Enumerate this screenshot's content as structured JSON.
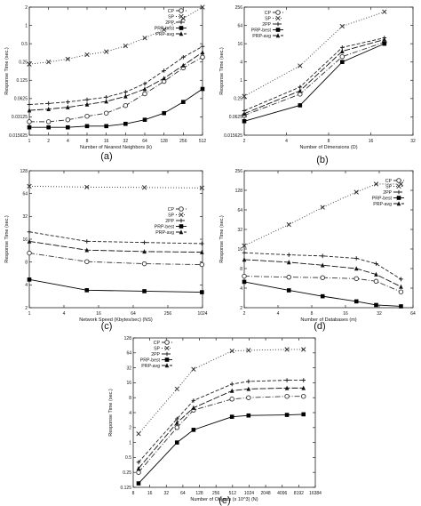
{
  "chart_data": [
    {
      "type": "line",
      "caption": "(a)",
      "xscale": "log2",
      "yscale": "log2",
      "xlabel": "Number of Nearest Neighbors (k)",
      "ylabel": "Response Time (sec.)",
      "xlim": [
        1,
        512
      ],
      "ylim": [
        0.015625,
        2
      ],
      "xticks": [
        1,
        2,
        4,
        8,
        16,
        32,
        64,
        128,
        256,
        512
      ],
      "xticklabels": [
        "1",
        "2",
        "4",
        "8",
        "16",
        "32",
        "64",
        "128",
        "256",
        "512"
      ],
      "yticks": [
        0.015625,
        0.03125,
        0.0625,
        0.125,
        0.25,
        0.5,
        1,
        2
      ],
      "yticklabels": [
        "0.015625",
        "0.03125",
        "0.0625",
        "0.125",
        "0.25",
        "0.5",
        "1",
        "2"
      ],
      "legend_position": "top-right",
      "series": [
        {
          "name": "CP",
          "x": [
            1,
            2,
            4,
            8,
            16,
            32,
            64,
            128,
            256,
            512
          ],
          "y": [
            0.026,
            0.026,
            0.028,
            0.032,
            0.036,
            0.048,
            0.075,
            0.12,
            0.2,
            0.3
          ]
        },
        {
          "name": "SP",
          "x": [
            1,
            2,
            4,
            8,
            16,
            32,
            64,
            128,
            256,
            512
          ],
          "y": [
            0.23,
            0.25,
            0.28,
            0.33,
            0.37,
            0.46,
            0.62,
            0.85,
            1.3,
            2.0
          ]
        },
        {
          "name": "2PP",
          "x": [
            1,
            2,
            4,
            8,
            16,
            32,
            64,
            128,
            256,
            512
          ],
          "y": [
            0.05,
            0.052,
            0.055,
            0.06,
            0.066,
            0.08,
            0.11,
            0.18,
            0.3,
            0.45
          ]
        },
        {
          "name": "PRP-best",
          "x": [
            1,
            2,
            4,
            8,
            16,
            32,
            64,
            128,
            256,
            512
          ],
          "y": [
            0.021,
            0.021,
            0.021,
            0.022,
            0.022,
            0.024,
            0.028,
            0.036,
            0.055,
            0.09
          ]
        },
        {
          "name": "PRP-avg",
          "x": [
            1,
            2,
            4,
            8,
            16,
            32,
            64,
            128,
            256,
            512
          ],
          "y": [
            0.04,
            0.042,
            0.045,
            0.05,
            0.056,
            0.068,
            0.09,
            0.135,
            0.22,
            0.36
          ]
        }
      ]
    },
    {
      "type": "line",
      "caption": "(b)",
      "xscale": "log2",
      "yscale": "log2",
      "xlabel": "Number of Dimensions (D)",
      "ylabel": "Response Time (sec.)",
      "xlim": [
        2,
        32
      ],
      "ylim": [
        0.015625,
        256
      ],
      "xticks": [
        2,
        4,
        8,
        16,
        32
      ],
      "xticklabels": [
        "2",
        "4",
        "8",
        "16",
        "32"
      ],
      "yticks": [
        0.015625,
        0.0625,
        0.25,
        1,
        4,
        16,
        64,
        256
      ],
      "yticklabels": [
        "0.015625",
        "0.0625",
        "0.25",
        "1",
        "4",
        "16",
        "64",
        "256"
      ],
      "legend_position": "top-left",
      "series": [
        {
          "name": "CP",
          "x": [
            2,
            5,
            10,
            20
          ],
          "y": [
            0.07,
            0.35,
            6,
            18
          ]
        },
        {
          "name": "SP",
          "x": [
            2,
            5,
            10,
            20
          ],
          "y": [
            0.3,
            3,
            60,
            180
          ]
        },
        {
          "name": "2PP",
          "x": [
            2,
            5,
            10,
            20
          ],
          "y": [
            0.1,
            0.6,
            12,
            25
          ]
        },
        {
          "name": "PRP-best",
          "x": [
            2,
            5,
            10,
            20
          ],
          "y": [
            0.045,
            0.15,
            4,
            16
          ]
        },
        {
          "name": "PRP-avg",
          "x": [
            2,
            5,
            10,
            20
          ],
          "y": [
            0.08,
            0.45,
            9,
            22
          ]
        }
      ]
    },
    {
      "type": "line",
      "caption": "(c)",
      "xscale": "log2",
      "yscale": "log2",
      "xlabel": "Network Speed (Kbytes/sec) (NS)",
      "ylabel": "Response Time (sec.)",
      "xlim": [
        1,
        1024
      ],
      "ylim": [
        2,
        128
      ],
      "xticks": [
        1,
        4,
        16,
        64,
        256,
        1024
      ],
      "xticklabels": [
        "1",
        "4",
        "16",
        "64",
        "256",
        "1024"
      ],
      "yticks": [
        2,
        4,
        8,
        16,
        32,
        64,
        128
      ],
      "yticklabels": [
        "2",
        "4",
        "8",
        "16",
        "32",
        "64",
        "128"
      ],
      "legend_position": "middle-right",
      "series": [
        {
          "name": "CP",
          "x": [
            1,
            10,
            100,
            1000
          ],
          "y": [
            10.5,
            8.1,
            7.6,
            7.4
          ]
        },
        {
          "name": "SP",
          "x": [
            1,
            10,
            100,
            1000
          ],
          "y": [
            80,
            78,
            77,
            76
          ]
        },
        {
          "name": "2PP",
          "x": [
            1,
            10,
            100,
            1000
          ],
          "y": [
            20,
            15,
            14.5,
            14
          ]
        },
        {
          "name": "PRP-best",
          "x": [
            1,
            10,
            100,
            1000
          ],
          "y": [
            4.7,
            3.4,
            3.3,
            3.2
          ]
        },
        {
          "name": "PRP-avg",
          "x": [
            1,
            10,
            100,
            1000
          ],
          "y": [
            15,
            11.5,
            11,
            10.8
          ]
        }
      ]
    },
    {
      "type": "line",
      "caption": "(d)",
      "xscale": "log2",
      "yscale": "log2",
      "xlabel": "Number of Databases (m)",
      "ylabel": "Response Time (sec.)",
      "xlim": [
        2,
        64
      ],
      "ylim": [
        2,
        256
      ],
      "xticks": [
        2,
        4,
        8,
        16,
        32,
        64
      ],
      "xticklabels": [
        "2",
        "4",
        "8",
        "16",
        "32",
        "64"
      ],
      "yticks": [
        2,
        4,
        8,
        16,
        32,
        64,
        128,
        256
      ],
      "yticklabels": [
        "2",
        "4",
        "8",
        "16",
        "32",
        "64",
        "128",
        "256"
      ],
      "legend_position": "top-right",
      "series": [
        {
          "name": "CP",
          "x": [
            2,
            5,
            10,
            20,
            30,
            50
          ],
          "y": [
            6.1,
            5.9,
            5.8,
            5.6,
            5.1,
            3.5
          ]
        },
        {
          "name": "SP",
          "x": [
            2,
            5,
            10,
            20,
            30,
            50
          ],
          "y": [
            18,
            38,
            70,
            120,
            160,
            160
          ]
        },
        {
          "name": "2PP",
          "x": [
            2,
            5,
            10,
            20,
            30,
            50
          ],
          "y": [
            14,
            13,
            12.5,
            11.5,
            9.5,
            5.5
          ]
        },
        {
          "name": "PRP-best",
          "x": [
            2,
            5,
            10,
            20,
            30,
            50
          ],
          "y": [
            5,
            3.7,
            3,
            2.5,
            2.2,
            2.1
          ]
        },
        {
          "name": "PRP-avg",
          "x": [
            2,
            5,
            10,
            20,
            30,
            50
          ],
          "y": [
            11,
            10,
            9,
            8,
            6.5,
            4.2
          ]
        }
      ]
    },
    {
      "type": "line",
      "caption": "(e)",
      "xscale": "log2",
      "yscale": "log2",
      "xlabel": "Number of Objects (x 10^3) (N)",
      "ylabel": "Response Time (sec.)",
      "xlim": [
        8,
        16384
      ],
      "ylim": [
        0.125,
        128
      ],
      "xticks": [
        8,
        16,
        32,
        64,
        128,
        256,
        512,
        1024,
        2048,
        4096,
        8192,
        16384
      ],
      "xticklabels": [
        "8",
        "16",
        "32",
        "64",
        "128",
        "256",
        "512",
        "1024",
        "2048",
        "4096",
        "8192",
        "16384"
      ],
      "yticks": [
        0.125,
        0.25,
        0.5,
        1,
        2,
        4,
        8,
        16,
        32,
        64,
        128
      ],
      "yticklabels": [
        "0.125",
        "0.25",
        "0.5",
        "1",
        "2",
        "4",
        "8",
        "16",
        "32",
        "64",
        "128"
      ],
      "legend_position": "top-left",
      "series": [
        {
          "name": "CP",
          "x": [
            10,
            50,
            100,
            500,
            1000,
            5000,
            10000
          ],
          "y": [
            0.25,
            2,
            4.5,
            7.5,
            8,
            8.5,
            8.5
          ]
        },
        {
          "name": "SP",
          "x": [
            10,
            50,
            100,
            500,
            1000,
            5000,
            10000
          ],
          "y": [
            1.5,
            12,
            30,
            70,
            72,
            75,
            75
          ]
        },
        {
          "name": "2PP",
          "x": [
            10,
            50,
            100,
            500,
            1000,
            5000,
            10000
          ],
          "y": [
            0.4,
            3,
            7,
            15,
            17,
            18,
            18
          ]
        },
        {
          "name": "PRP-best",
          "x": [
            10,
            50,
            100,
            500,
            1000,
            5000,
            10000
          ],
          "y": [
            0.15,
            1,
            1.8,
            3.3,
            3.5,
            3.6,
            3.7
          ]
        },
        {
          "name": "PRP-avg",
          "x": [
            10,
            50,
            100,
            500,
            1000,
            5000,
            10000
          ],
          "y": [
            0.3,
            2.5,
            5,
            11,
            12,
            12.5,
            12.5
          ]
        }
      ]
    }
  ],
  "series_style": {
    "CP": {
      "stroke": "#333333",
      "dash": "6 2 1 2",
      "marker": "circle"
    },
    "SP": {
      "stroke": "#333333",
      "dash": "1 2",
      "marker": "cross"
    },
    "2PP": {
      "stroke": "#222222",
      "dash": "4 2",
      "marker": "plus"
    },
    "PRP-best": {
      "stroke": "#000000",
      "dash": "",
      "marker": "square"
    },
    "PRP-avg": {
      "stroke": "#111111",
      "dash": "7 2",
      "marker": "triangle"
    }
  }
}
